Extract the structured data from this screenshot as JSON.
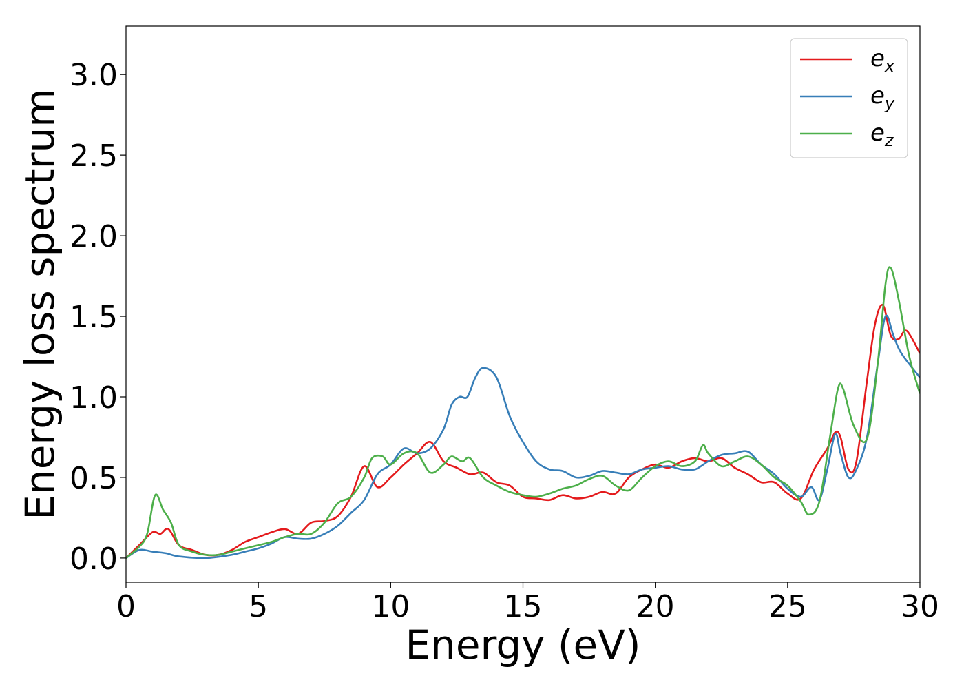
{
  "chart_data": {
    "type": "line",
    "xlabel": "Energy (eV)",
    "ylabel": "Energy loss spectrum",
    "xlim": [
      0,
      30
    ],
    "ylim": [
      -0.15,
      3.3
    ],
    "xticks": [
      0,
      5,
      10,
      15,
      20,
      25,
      30
    ],
    "yticks": [
      0.0,
      0.5,
      1.0,
      1.5,
      2.0,
      2.5,
      3.0
    ],
    "xtick_labels": [
      "0",
      "5",
      "10",
      "15",
      "20",
      "25",
      "30"
    ],
    "ytick_labels": [
      "0.0",
      "0.5",
      "1.0",
      "1.5",
      "2.0",
      "2.5",
      "3.0"
    ],
    "grid": false,
    "legend_position": "top-right",
    "series": [
      {
        "name": "e",
        "subscript": "x",
        "color": "#e41a1c",
        "x": [
          0,
          0.5,
          1,
          1.3,
          1.6,
          2,
          2.5,
          3,
          3.5,
          4,
          4.5,
          5,
          5.5,
          6,
          6.5,
          7,
          7.5,
          8,
          8.5,
          9,
          9.5,
          10,
          10.5,
          11,
          11.5,
          12,
          12.5,
          13,
          13.5,
          14,
          14.5,
          15,
          15.5,
          16,
          16.5,
          17,
          17.5,
          18,
          18.5,
          19,
          19.5,
          20,
          20.5,
          21,
          21.5,
          22,
          22.5,
          23,
          23.5,
          24,
          24.5,
          25,
          25.5,
          26,
          26.5,
          26.8,
          27,
          27.3,
          27.6,
          28,
          28.3,
          28.6,
          28.9,
          29.2,
          29.5,
          30
        ],
        "y": [
          0,
          0.08,
          0.16,
          0.15,
          0.18,
          0.08,
          0.05,
          0.02,
          0.02,
          0.05,
          0.1,
          0.13,
          0.16,
          0.18,
          0.15,
          0.22,
          0.23,
          0.26,
          0.38,
          0.57,
          0.44,
          0.5,
          0.58,
          0.65,
          0.72,
          0.6,
          0.56,
          0.52,
          0.53,
          0.47,
          0.45,
          0.38,
          0.37,
          0.36,
          0.39,
          0.37,
          0.38,
          0.41,
          0.4,
          0.5,
          0.55,
          0.58,
          0.56,
          0.6,
          0.62,
          0.6,
          0.62,
          0.56,
          0.52,
          0.47,
          0.47,
          0.4,
          0.37,
          0.55,
          0.68,
          0.78,
          0.75,
          0.55,
          0.6,
          1.1,
          1.45,
          1.57,
          1.38,
          1.36,
          1.41,
          1.27
        ]
      },
      {
        "name": "e",
        "subscript": "y",
        "color": "#377eb8",
        "x": [
          0,
          0.5,
          1,
          1.5,
          2,
          3,
          4,
          4.5,
          5,
          5.5,
          6,
          6.5,
          7,
          7.5,
          8,
          8.5,
          9,
          9.5,
          10,
          10.5,
          11,
          11.5,
          12,
          12.3,
          12.6,
          12.9,
          13.2,
          13.5,
          14,
          14.5,
          15,
          15.5,
          16,
          16.5,
          17,
          17.5,
          18,
          18.5,
          19,
          19.5,
          20,
          20.5,
          21,
          21.5,
          22,
          22.5,
          23,
          23.5,
          24,
          24.5,
          25,
          25.5,
          25.9,
          26.2,
          26.5,
          26.8,
          27,
          27.3,
          27.6,
          28,
          28.4,
          28.7,
          29,
          29.3,
          30
        ],
        "y": [
          0,
          0.05,
          0.04,
          0.03,
          0.01,
          0.0,
          0.02,
          0.04,
          0.06,
          0.09,
          0.13,
          0.12,
          0.12,
          0.15,
          0.2,
          0.28,
          0.36,
          0.52,
          0.58,
          0.68,
          0.65,
          0.68,
          0.8,
          0.95,
          1.0,
          1.0,
          1.12,
          1.18,
          1.12,
          0.88,
          0.72,
          0.6,
          0.55,
          0.54,
          0.5,
          0.51,
          0.54,
          0.53,
          0.52,
          0.55,
          0.56,
          0.57,
          0.55,
          0.55,
          0.6,
          0.64,
          0.65,
          0.66,
          0.58,
          0.52,
          0.43,
          0.38,
          0.44,
          0.36,
          0.55,
          0.77,
          0.65,
          0.5,
          0.55,
          0.75,
          1.2,
          1.5,
          1.38,
          1.27,
          1.12
        ]
      },
      {
        "name": "e",
        "subscript": "z",
        "color": "#4daf4a",
        "x": [
          0,
          0.5,
          0.8,
          1.1,
          1.4,
          1.7,
          2,
          2.5,
          3,
          3.5,
          4,
          4.5,
          5,
          5.5,
          6,
          6.5,
          7,
          7.5,
          8,
          8.5,
          9,
          9.3,
          9.7,
          10,
          10.5,
          11,
          11.5,
          12,
          12.3,
          12.7,
          13,
          13.5,
          14,
          14.5,
          15,
          15.5,
          16,
          16.5,
          17,
          17.5,
          18,
          18.5,
          19,
          19.5,
          20,
          20.5,
          21,
          21.5,
          21.8,
          22,
          22.5,
          23,
          23.5,
          24,
          24.5,
          25,
          25.5,
          25.8,
          26.2,
          26.6,
          26.9,
          27.1,
          27.5,
          28,
          28.4,
          28.7,
          28.9,
          29.2,
          29.6,
          30
        ],
        "y": [
          0,
          0.07,
          0.15,
          0.39,
          0.3,
          0.22,
          0.08,
          0.04,
          0.02,
          0.02,
          0.04,
          0.06,
          0.08,
          0.1,
          0.13,
          0.15,
          0.15,
          0.22,
          0.34,
          0.38,
          0.5,
          0.62,
          0.63,
          0.58,
          0.65,
          0.65,
          0.53,
          0.58,
          0.63,
          0.6,
          0.62,
          0.5,
          0.45,
          0.41,
          0.39,
          0.38,
          0.4,
          0.43,
          0.45,
          0.49,
          0.51,
          0.45,
          0.42,
          0.5,
          0.57,
          0.6,
          0.57,
          0.6,
          0.7,
          0.65,
          0.57,
          0.6,
          0.63,
          0.58,
          0.5,
          0.45,
          0.35,
          0.27,
          0.35,
          0.75,
          1.05,
          1.05,
          0.82,
          0.74,
          1.2,
          1.7,
          1.8,
          1.6,
          1.25,
          1.02
        ]
      }
    ]
  }
}
